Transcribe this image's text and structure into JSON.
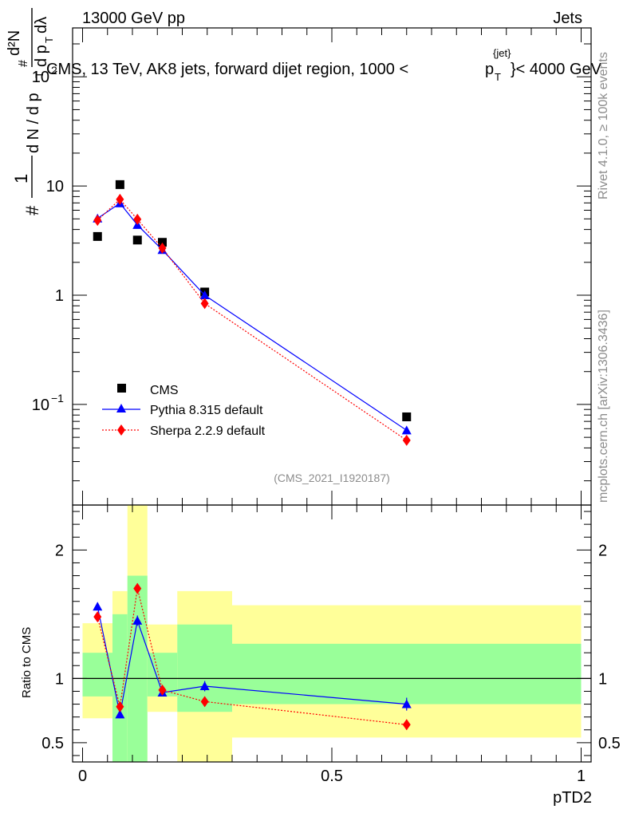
{
  "header": {
    "left": "13000 GeV pp",
    "right": "Jets"
  },
  "watermark": {
    "rivet": "Rivet 4.1.0, ≥ 100k events",
    "mcplots": "mcplots.cern.ch [arXiv:1306.3436]"
  },
  "colors": {
    "cms": "#000000",
    "pythia": "#0000ff",
    "sherpa": "#ff0000",
    "band_inner": "#99ff99",
    "band_outer": "#ffff99"
  },
  "chart_data": [
    {
      "type": "scatter",
      "title": "CMS, 13 TeV, AK8 jets, forward dijet region, 1000 <p_T^{jet}< 4000 GeV",
      "title_parts": {
        "pre": "CMS, 13 TeV, AK8 jets, forward dijet region, 1000 <",
        "p": "p",
        "sup": "{jet}",
        "sub": "T",
        "post": "}< 4000 GeV"
      },
      "ylabel_parts": {
        "hash1": "#",
        "hash2": "#",
        "one": "1",
        "dN_dpT": "d N / d p",
        "T": "T",
        "d2N": "d²N",
        "dp": "d p",
        "dlambda": "dλ",
        "T2": "T"
      },
      "yscale": "log",
      "ylim": [
        0.012,
        280
      ],
      "xlim": [
        -0.02,
        1.02
      ],
      "ytick_labels": [
        {
          "value": 100,
          "base": "10",
          "exp": "2"
        },
        {
          "value": 10,
          "base": "10",
          "exp": ""
        },
        {
          "value": 1,
          "base": "1",
          "exp": ""
        },
        {
          "value": 0.1,
          "base": "10",
          "exp": "−1"
        }
      ],
      "analysis_tag": "(CMS_2021_I1920187)",
      "legend_position": "lower-left",
      "series": [
        {
          "name": "CMS",
          "marker": "square",
          "x": [
            0.03,
            0.075,
            0.11,
            0.16,
            0.245,
            0.65
          ],
          "y": [
            3.45,
            10.3,
            3.2,
            3.05,
            1.07,
            0.077
          ]
        },
        {
          "name": "Pythia 8.315 default",
          "marker": "triangle",
          "line": "solid",
          "x": [
            0.03,
            0.075,
            0.11,
            0.16,
            0.245,
            0.65
          ],
          "y": [
            5.05,
            6.95,
            4.4,
            2.6,
            1.0,
            0.058
          ]
        },
        {
          "name": "Sherpa 2.2.9 default",
          "marker": "diamond",
          "line": "dotted",
          "x": [
            0.03,
            0.075,
            0.11,
            0.16,
            0.245,
            0.65
          ],
          "y": [
            4.85,
            7.55,
            4.95,
            2.7,
            0.84,
            0.047
          ]
        }
      ]
    },
    {
      "type": "scatter",
      "title": "",
      "xlabel": "pTD2",
      "ylabel": "Ratio to CMS",
      "ylim": [
        0.35,
        2.35
      ],
      "xlim": [
        -0.02,
        1.02
      ],
      "ytick_labels": [
        "0.5",
        "1",
        "2"
      ],
      "ytick_values": [
        0.5,
        1,
        2
      ],
      "xtick_labels": [
        "0",
        "0.5",
        "1"
      ],
      "xtick_values": [
        0,
        0.5,
        1
      ],
      "reference_line": 1,
      "uncertainty_bands": [
        {
          "x_lo": 0.0,
          "x_hi": 0.06,
          "inner": [
            0.86,
            1.2
          ],
          "outer": [
            0.69,
            1.43
          ]
        },
        {
          "x_lo": 0.06,
          "x_hi": 0.09,
          "inner": [
            0.0,
            1.5
          ],
          "outer": [
            0.63,
            1.68
          ]
        },
        {
          "x_lo": 0.09,
          "x_hi": 0.13,
          "inner": [
            0.0,
            1.8
          ],
          "outer": [
            0.0,
            2.4
          ]
        },
        {
          "x_lo": 0.13,
          "x_hi": 0.19,
          "inner": [
            0.86,
            1.2
          ],
          "outer": [
            0.74,
            1.42
          ]
        },
        {
          "x_lo": 0.19,
          "x_hi": 0.3,
          "inner": [
            0.74,
            1.42
          ],
          "outer": [
            0.0,
            1.68
          ]
        },
        {
          "x_lo": 0.3,
          "x_hi": 1.0,
          "inner": [
            0.8,
            1.27
          ],
          "outer": [
            0.54,
            1.57
          ]
        }
      ],
      "series": [
        {
          "name": "Pythia 8.315 default",
          "marker": "triangle",
          "line": "solid",
          "x": [
            0.03,
            0.075,
            0.11,
            0.16,
            0.245,
            0.65
          ],
          "y": [
            1.56,
            0.72,
            1.45,
            0.89,
            0.94,
            0.8
          ],
          "err": [
            0.03,
            0.03,
            0.04,
            0.02,
            0.04,
            0.05
          ]
        },
        {
          "name": "Sherpa 2.2.9 default",
          "marker": "diamond",
          "line": "dotted",
          "x": [
            0.03,
            0.075,
            0.11,
            0.16,
            0.245,
            0.65
          ],
          "y": [
            1.48,
            0.78,
            1.7,
            0.91,
            0.82,
            0.64
          ],
          "err": [
            0.03,
            0.03,
            0.04,
            0.02,
            0.03,
            0.04
          ]
        }
      ]
    }
  ]
}
